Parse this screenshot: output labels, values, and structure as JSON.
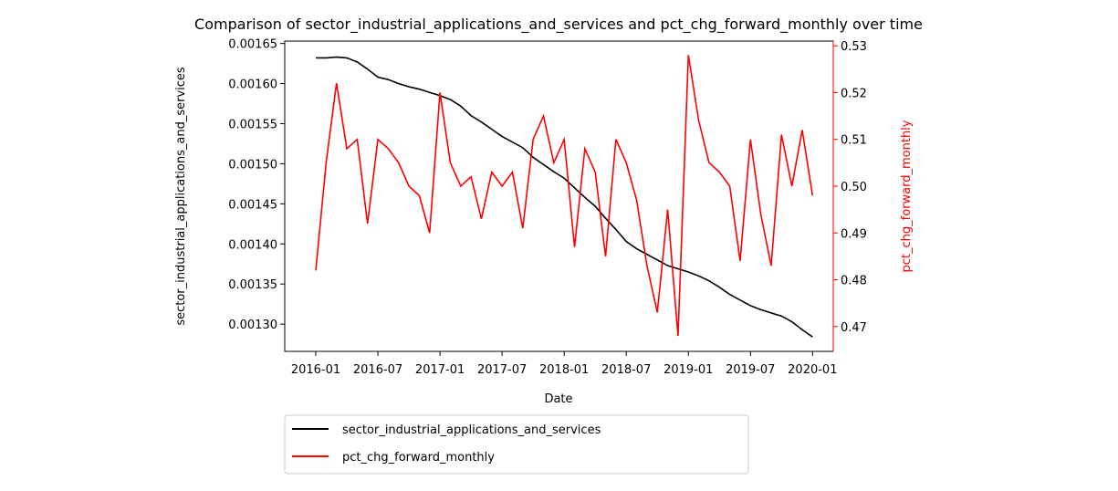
{
  "chart_data": {
    "type": "line",
    "title": "Comparison of sector_industrial_applications_and_services and pct_chg_forward_monthly over time",
    "x_label": "Date",
    "y_label": "sector_industrial_applications_and_services",
    "y2_label": "pct_chg_forward_monthly",
    "x": [
      "2016-01",
      "2016-02",
      "2016-03",
      "2016-04",
      "2016-05",
      "2016-06",
      "2016-07",
      "2016-08",
      "2016-09",
      "2016-10",
      "2016-11",
      "2016-12",
      "2017-01",
      "2017-02",
      "2017-03",
      "2017-04",
      "2017-05",
      "2017-06",
      "2017-07",
      "2017-08",
      "2017-09",
      "2017-10",
      "2017-11",
      "2017-12",
      "2018-01",
      "2018-02",
      "2018-03",
      "2018-04",
      "2018-05",
      "2018-06",
      "2018-07",
      "2018-08",
      "2018-09",
      "2018-10",
      "2018-11",
      "2018-12",
      "2019-01",
      "2019-02",
      "2019-03",
      "2019-04",
      "2019-05",
      "2019-06",
      "2019-07",
      "2019-08",
      "2019-09",
      "2019-10",
      "2019-11",
      "2019-12",
      "2020-01"
    ],
    "xlim": [
      "2015-10",
      "2020-03"
    ],
    "xticks": [
      "2016-01",
      "2016-07",
      "2017-01",
      "2017-07",
      "2018-01",
      "2018-07",
      "2019-01",
      "2019-07",
      "2020-01"
    ],
    "ylim": [
      0.001266,
      0.001653
    ],
    "yticks": [
      {
        "value": 0.0013,
        "label": "0.00130"
      },
      {
        "value": 0.00135,
        "label": "0.00135"
      },
      {
        "value": 0.0014,
        "label": "0.00140"
      },
      {
        "value": 0.00145,
        "label": "0.00145"
      },
      {
        "value": 0.0015,
        "label": "0.00150"
      },
      {
        "value": 0.00155,
        "label": "0.00155"
      },
      {
        "value": 0.0016,
        "label": "0.00160"
      },
      {
        "value": 0.00165,
        "label": "0.00165"
      }
    ],
    "y2lim": [
      0.4647,
      0.531
    ],
    "y2ticks": [
      0.47,
      0.48,
      0.49,
      {
        "value": 0.5,
        "label": "0.50"
      },
      0.51,
      0.52,
      0.53
    ],
    "legend": "below",
    "series": [
      {
        "name": "sector_industrial_applications_and_services",
        "color": "#000000",
        "values": [
          0.001632,
          0.001632,
          0.001633,
          0.001632,
          0.001627,
          0.001618,
          0.001608,
          0.001605,
          0.0016,
          0.001596,
          0.001593,
          0.001589,
          0.001585,
          0.00158,
          0.001572,
          0.00156,
          0.001552,
          0.001543,
          0.001534,
          0.001527,
          0.00152,
          0.001508,
          0.001499,
          0.00149,
          0.001482,
          0.00147,
          0.001458,
          0.001447,
          0.001432,
          0.001418,
          0.001403,
          0.001394,
          0.001387,
          0.00138,
          0.001373,
          0.001369,
          0.001365,
          0.00136,
          0.001354,
          0.001346,
          0.001337,
          0.00133,
          0.001323,
          0.001318,
          0.001314,
          0.00131,
          0.001303,
          0.001293,
          0.001284
        ]
      },
      {
        "name": "pct_chg_forward_monthly",
        "color": "#ff0000",
        "axis": "y2",
        "values": [
          0.482,
          0.505,
          0.522,
          0.508,
          0.51,
          0.492,
          0.51,
          0.508,
          0.505,
          0.5,
          0.498,
          0.49,
          0.52,
          0.505,
          0.5,
          0.502,
          0.493,
          0.503,
          0.5,
          0.503,
          0.491,
          0.51,
          0.515,
          0.505,
          0.51,
          0.487,
          0.508,
          0.503,
          0.485,
          0.51,
          0.505,
          0.497,
          0.483,
          0.473,
          0.495,
          0.468,
          0.528,
          0.514,
          0.505,
          0.503,
          0.5,
          0.484,
          0.51,
          0.494,
          0.483,
          0.511,
          0.5,
          0.512,
          0.498
        ]
      }
    ]
  }
}
